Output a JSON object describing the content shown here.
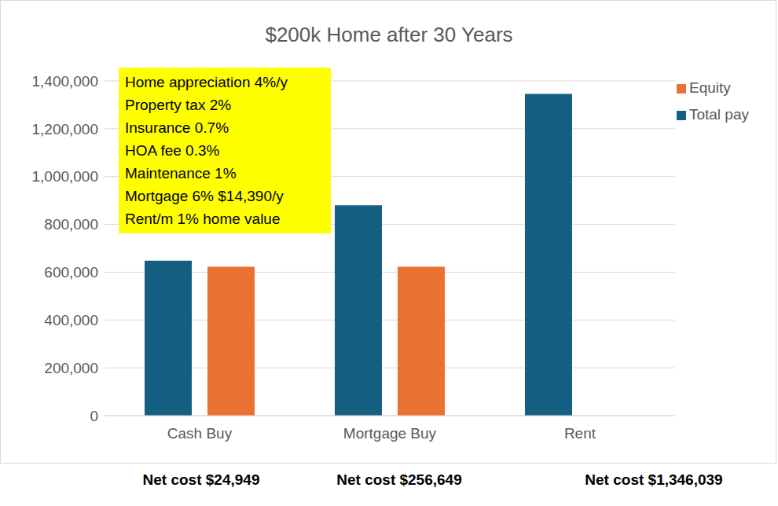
{
  "chart_data": {
    "type": "bar",
    "title": "$200k Home after 30 Years",
    "categories": [
      "Cash Buy",
      "Mortgage Buy",
      "Rent"
    ],
    "series": [
      {
        "name": "Total pay",
        "color": "#156082",
        "values": [
          648000,
          880000,
          1346039
        ]
      },
      {
        "name": "Equity",
        "color": "#e97132",
        "values": [
          623000,
          623000,
          null
        ]
      }
    ],
    "ylim": [
      0,
      1400000
    ],
    "yticks": [
      0,
      {
        "value": 200000,
        "label": "200,000"
      },
      {
        "value": 400000,
        "label": "400,000"
      },
      {
        "value": 600000,
        "label": "600,000"
      },
      {
        "value": 800000,
        "label": "800,000"
      },
      {
        "value": 1000000,
        "label": "1,000,000"
      },
      {
        "value": 1200000,
        "label": "1,200,000"
      },
      {
        "value": 1400000,
        "label": "1,400,000"
      }
    ],
    "grid": true,
    "legend": "upper right",
    "annotations": [
      "Home appreciation 4%/y",
      "Property tax 2%",
      "Insurance 0.7%",
      "HOA fee 0.3%",
      "Maintenance 1%",
      "Mortgage 6% $14,390/y",
      "Rent/m 1% home value"
    ],
    "net_costs": [
      "Net cost $24,949",
      "Net cost $256,649",
      "Net cost $1,346,039"
    ]
  }
}
